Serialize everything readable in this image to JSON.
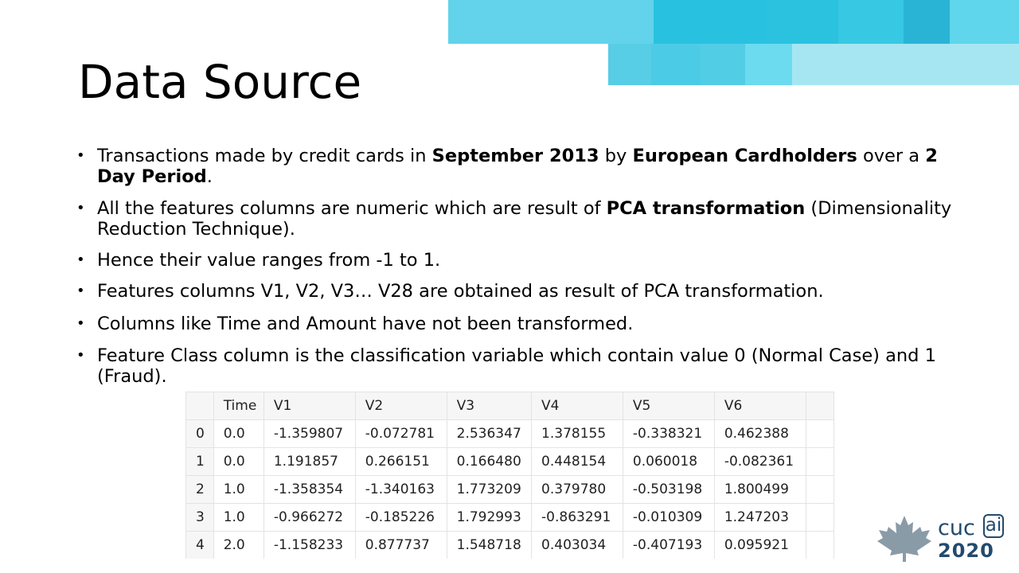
{
  "slide": {
    "title": "Data Source",
    "bullets": [
      [
        {
          "t": "Transactions made by credit cards in "
        },
        {
          "t": "September 2013",
          "b": true
        },
        {
          "t": " by "
        },
        {
          "t": "European Cardholders",
          "b": true
        },
        {
          "t": " over a "
        },
        {
          "t": "2 Day Period",
          "b": true
        },
        {
          "t": "."
        }
      ],
      [
        {
          "t": "All the features columns are numeric which are result of "
        },
        {
          "t": "PCA transformation",
          "b": true
        },
        {
          "t": " (Dimensionality Reduction Technique)."
        }
      ],
      [
        {
          "t": "Hence their value ranges from -1 to 1."
        }
      ],
      [
        {
          "t": "Features columns V1, V2, V3… V28 are obtained as result of PCA transformation."
        }
      ],
      [
        {
          "t": "Columns like Time and Amount have not been transformed."
        }
      ],
      [
        {
          "t": "Feature Class column is the classification variable which contain value 0 (Normal Case) and 1 (Fraud)."
        }
      ]
    ]
  },
  "table": {
    "columns": [
      "",
      "Time",
      "V1",
      "V2",
      "V3",
      "V4",
      "V5",
      "V6"
    ],
    "rows": [
      [
        "0",
        "0.0",
        "-1.359807",
        "-0.072781",
        "2.536347",
        "1.378155",
        "-0.338321",
        "0.462388"
      ],
      [
        "1",
        "0.0",
        "1.191857",
        "0.266151",
        "0.166480",
        "0.448154",
        "0.060018",
        "-0.082361"
      ],
      [
        "2",
        "1.0",
        "-1.358354",
        "-1.340163",
        "1.773209",
        "0.379780",
        "-0.503198",
        "1.800499"
      ],
      [
        "3",
        "1.0",
        "-0.966272",
        "-0.185226",
        "1.792993",
        "-0.863291",
        "-0.010309",
        "1.247203"
      ],
      [
        "4",
        "2.0",
        "-1.158233",
        "0.877737",
        "1.548718",
        "0.403034",
        "-0.407193",
        "0.095921"
      ]
    ]
  },
  "logo": {
    "name_left": "cuc",
    "name_boxed": "ai",
    "year": "2020",
    "icon": "maple-leaf-icon",
    "color": "#234a6e"
  },
  "colors": {
    "accent_light": "#a6e6f2",
    "accent_mid": "#62d3ea",
    "accent_dark": "#1fbcdc"
  }
}
